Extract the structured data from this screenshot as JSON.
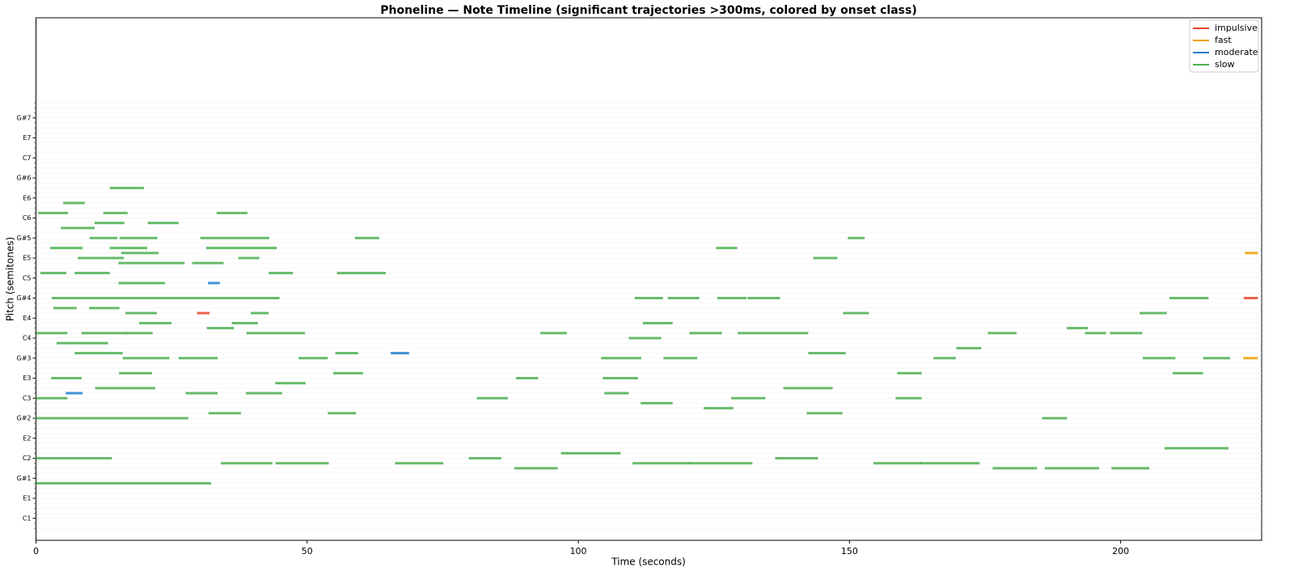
{
  "chart_data": {
    "type": "timeline",
    "title": "Phoneline — Note Timeline (significant trajectories >300ms, colored by onset class)",
    "x_label": "Time (seconds)",
    "y_label": "Pitch (semitones)",
    "xlim": [
      0,
      226
    ],
    "ylim": [
      19.6,
      124
    ],
    "xticks": [
      0,
      50,
      100,
      150,
      200
    ],
    "yticks": [
      {
        "value": 24,
        "label": "C1"
      },
      {
        "value": 28,
        "label": "E1"
      },
      {
        "value": 32,
        "label": "G#1"
      },
      {
        "value": 36,
        "label": "C2"
      },
      {
        "value": 40,
        "label": "E2"
      },
      {
        "value": 44,
        "label": "G#2"
      },
      {
        "value": 48,
        "label": "C3"
      },
      {
        "value": 52,
        "label": "E3"
      },
      {
        "value": 56,
        "label": "G#3"
      },
      {
        "value": 60,
        "label": "C4"
      },
      {
        "value": 64,
        "label": "E4"
      },
      {
        "value": 68,
        "label": "G#4"
      },
      {
        "value": 72,
        "label": "C5"
      },
      {
        "value": 76,
        "label": "E5"
      },
      {
        "value": 80,
        "label": "G#5"
      },
      {
        "value": 84,
        "label": "C6"
      },
      {
        "value": 88,
        "label": "E6"
      },
      {
        "value": 92,
        "label": "G#6"
      },
      {
        "value": 96,
        "label": "C7"
      },
      {
        "value": 100,
        "label": "E7"
      },
      {
        "value": 104,
        "label": "G#7"
      }
    ],
    "yminorticks": [
      22,
      23,
      24,
      25,
      26,
      27,
      28,
      29,
      30,
      31,
      32,
      33,
      34,
      35,
      36,
      37,
      38,
      39,
      40,
      41,
      42,
      43,
      44,
      45,
      46,
      47,
      48,
      49,
      50,
      51,
      52,
      53,
      54,
      55,
      56,
      57,
      58,
      59,
      60,
      61,
      62,
      63,
      64,
      65,
      66,
      67,
      68,
      69,
      70,
      71,
      72,
      73,
      74,
      75,
      76,
      77,
      78,
      79,
      80,
      81,
      82,
      83,
      84,
      85,
      86,
      87,
      88,
      89,
      90,
      91,
      92,
      93,
      94,
      95,
      96,
      97,
      98,
      99,
      100,
      101,
      102,
      103,
      104,
      105,
      106,
      107
    ],
    "grid": true,
    "legend": "upper right",
    "series": [
      {
        "name": "impulsive",
        "color": "#e8462a",
        "start": [
          29.7,
          222.7
        ],
        "end": [
          32.0,
          225.3
        ],
        "pitch": [
          65,
          68
        ]
      },
      {
        "name": "fast",
        "color": "#f0a000",
        "start": [
          222.9,
          222.6
        ],
        "end": [
          225.3,
          225.3
        ],
        "pitch": [
          77,
          56
        ]
      },
      {
        "name": "moderate",
        "color": "#1f7fd0",
        "start": [
          65.4,
          5.5,
          31.7
        ],
        "end": [
          68.8,
          8.6,
          33.9
        ],
        "pitch": [
          57,
          49,
          71
        ]
      },
      {
        "name": "slow",
        "color": "#4caf50",
        "start": [
          0,
          0,
          0,
          0,
          2.8,
          10.9,
          7.1,
          16.0,
          3.8,
          0,
          8.4,
          16.5,
          15.3,
          26.3,
          27.6,
          2.9,
          3.2,
          9.8,
          16.5,
          19.0,
          0.8,
          7.1,
          15.2,
          15.2,
          7.7,
          15.7,
          2.6,
          13.6,
          30.3,
          31.4,
          28.8,
          37.3,
          15.4,
          9.9,
          4.6,
          10.8,
          0.4,
          12.4,
          20.6,
          33.3,
          13.6,
          5.0,
          55.5,
          42.9,
          38.8,
          31.5,
          36.1,
          39.6,
          38.7,
          31.8,
          53.8,
          44.1,
          54.8,
          48.4,
          55.2,
          34.1,
          44.2,
          66.2,
          79.8,
          88.2,
          96.8,
          110.0,
          120.5,
          136.3,
          154.4,
          163.0,
          176.4,
          186.0,
          198.3,
          208.1,
          93.0,
          104.2,
          109.3,
          111.9,
          115.7,
          110.4,
          116.5,
          125.6,
          131.2,
          120.5,
          129.4,
          137.3,
          142.4,
          137.8,
          142.1,
          128.2,
          123.1,
          111.5,
          104.8,
          104.5,
          88.5,
          81.3,
          148.8,
          158.8,
          158.5,
          165.5,
          169.7,
          175.5,
          185.5,
          190.1,
          193.4,
          198.0,
          203.5,
          204.1,
          209.0,
          209.6,
          215.2,
          143.3,
          149.7,
          58.8,
          125.4
        ],
        "end": [
          32.3,
          14.0,
          28.1,
          5.8,
          8.4,
          22.0,
          16.0,
          24.6,
          13.3,
          5.8,
          16.8,
          21.5,
          21.4,
          33.5,
          33.5,
          44.9,
          7.5,
          15.4,
          22.3,
          25.0,
          5.6,
          13.6,
          23.8,
          27.4,
          16.2,
          22.6,
          8.6,
          20.5,
          43.0,
          44.4,
          34.6,
          41.2,
          22.4,
          15.0,
          10.8,
          16.3,
          5.9,
          16.9,
          26.3,
          39.0,
          19.9,
          9.0,
          64.5,
          47.4,
          49.6,
          36.5,
          40.9,
          42.9,
          45.4,
          37.8,
          59.0,
          49.7,
          60.3,
          53.8,
          59.4,
          43.6,
          54.0,
          75.1,
          85.8,
          96.2,
          107.8,
          120.8,
          132.1,
          144.2,
          163.3,
          174.0,
          184.6,
          196.0,
          205.3,
          219.9,
          97.9,
          111.6,
          115.3,
          117.4,
          121.9,
          115.6,
          122.3,
          131.0,
          137.2,
          126.5,
          137.3,
          142.4,
          149.3,
          146.9,
          148.7,
          134.5,
          128.6,
          117.4,
          109.3,
          111.0,
          92.6,
          87.0,
          153.6,
          163.3,
          163.3,
          169.6,
          174.3,
          180.8,
          190.1,
          194.0,
          197.3,
          204.0,
          208.5,
          210.1,
          216.2,
          215.2,
          220.2,
          147.8,
          152.8,
          63.3,
          129.3
        ],
        "pitch": [
          31,
          36,
          44,
          48,
          52,
          50,
          57,
          56,
          59,
          61,
          61,
          61,
          53,
          56,
          49,
          68,
          66,
          66,
          65,
          63,
          73,
          73,
          71,
          75,
          76,
          77,
          78,
          78,
          80,
          78,
          75,
          76,
          80,
          80,
          82,
          83,
          85,
          85,
          83,
          85,
          90,
          87,
          73,
          73,
          61,
          62,
          63,
          65,
          49,
          45,
          45,
          51,
          53,
          56,
          57,
          35,
          35,
          35,
          36,
          34,
          37,
          35,
          35,
          36,
          35,
          35,
          34,
          34,
          34,
          38,
          61,
          56,
          60,
          63,
          56,
          68,
          68,
          68,
          68,
          61,
          61,
          61,
          57,
          50,
          45,
          48,
          46,
          47,
          49,
          52,
          52,
          48,
          65,
          53,
          48,
          56,
          58,
          61,
          44,
          62,
          61,
          61,
          65,
          56,
          68,
          53,
          56,
          76,
          80,
          80,
          78
        ]
      }
    ]
  }
}
